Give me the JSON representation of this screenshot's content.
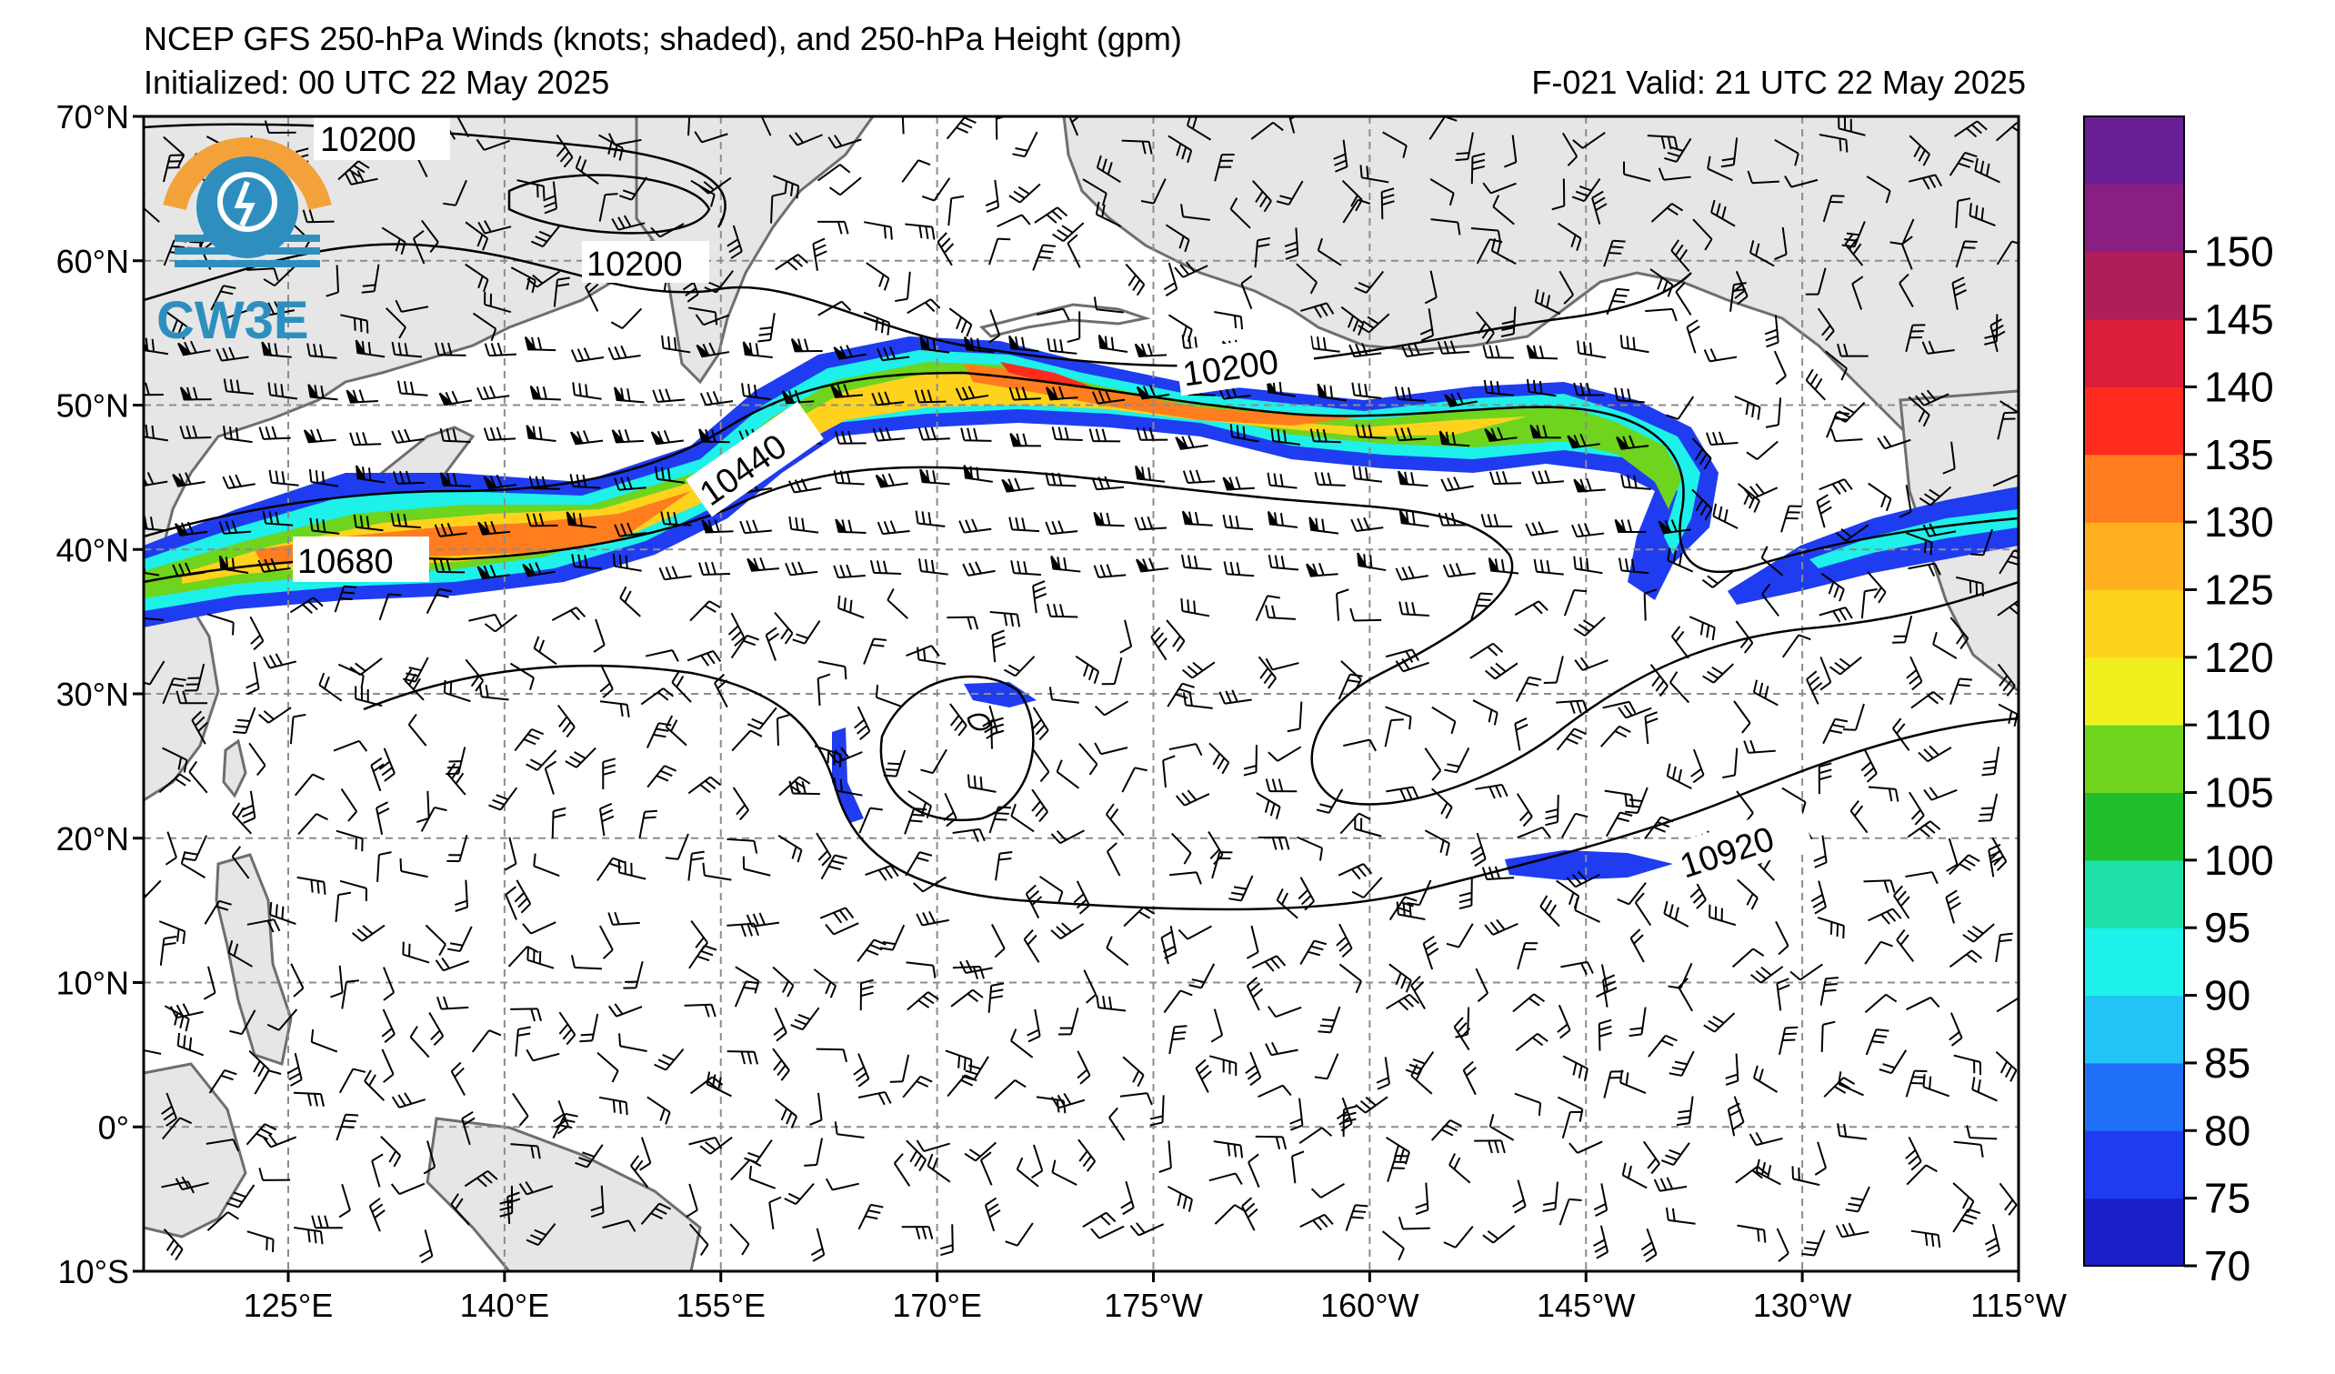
{
  "header": {
    "title": "NCEP GFS 250-hPa Winds (knots; shaded), and 250-hPa Height (gpm)",
    "initialized": "Initialized: 00 UTC 22 May 2025",
    "valid": "F-021  Valid: 21 UTC 22 May 2025"
  },
  "logo": {
    "text": "CW3E",
    "colors": {
      "orange": "#f3a23a",
      "blue": "#2e8fbf"
    }
  },
  "map": {
    "lat_labels": [
      "70°N",
      "60°N",
      "50°N",
      "40°N",
      "30°N",
      "20°N",
      "10°N",
      "0°",
      "10°S"
    ],
    "lon_labels": [
      "125°E",
      "140°E",
      "155°E",
      "170°E",
      "175°W",
      "160°W",
      "145°W",
      "130°W",
      "115°W"
    ],
    "contour_labels": [
      "10200",
      "10200",
      "10200",
      "10440",
      "10680",
      "10920"
    ],
    "land_color": "#e6e6e6",
    "coast_color": "#6e6e6e"
  },
  "colorbar": {
    "ticks": [
      "70",
      "75",
      "80",
      "85",
      "90",
      "95",
      "100",
      "105",
      "110",
      "120",
      "125",
      "130",
      "135",
      "140",
      "145",
      "150"
    ],
    "colors": [
      "#1b1fc8",
      "#1f3cf0",
      "#1e6ff5",
      "#22c4f5",
      "#1ef0ea",
      "#1fe0a8",
      "#1fbe2a",
      "#6ed41e",
      "#f0f01e",
      "#ffd21e",
      "#ffb01e",
      "#ff7d1e",
      "#ff2b1e",
      "#dc1e3c",
      "#b01e5a",
      "#8a1e82",
      "#6a1e96"
    ]
  }
}
